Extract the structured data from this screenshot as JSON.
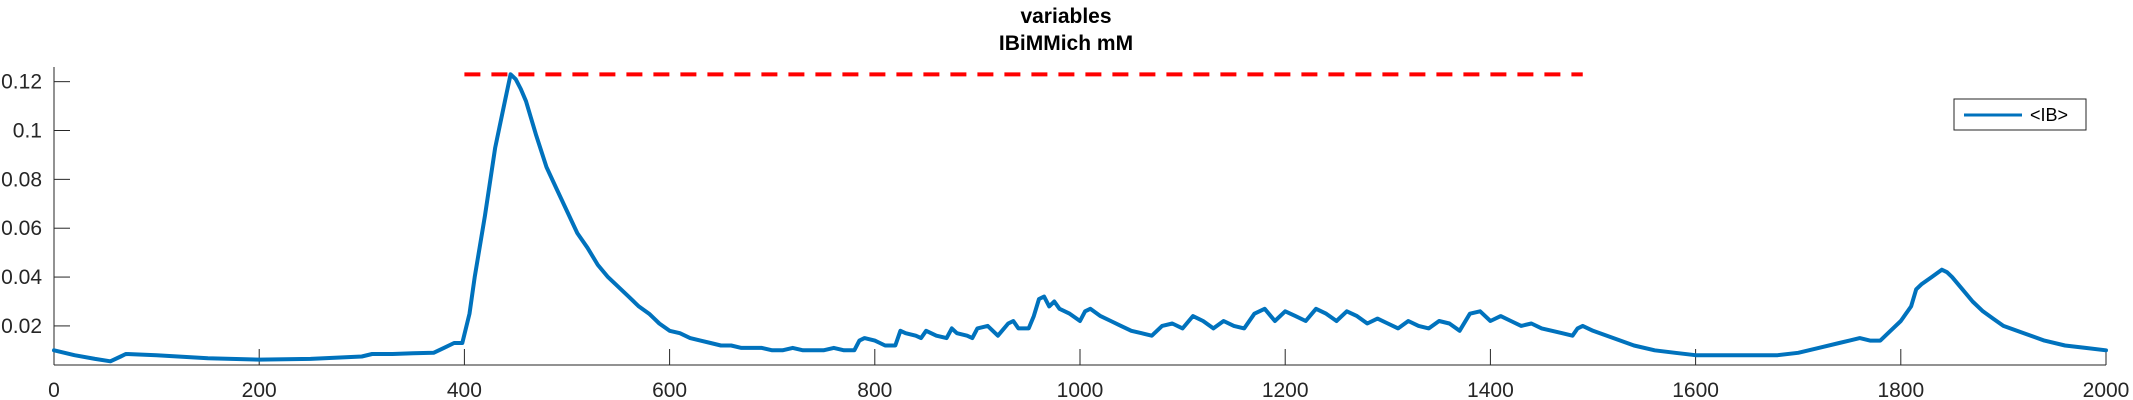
{
  "chart_data": {
    "type": "line",
    "title": [
      "variables",
      "IBiMMich mM"
    ],
    "xlabel": "",
    "ylabel": "",
    "xlim": [
      0,
      2000
    ],
    "ylim": [
      0.004,
      0.126
    ],
    "x_ticks": [
      0,
      200,
      400,
      600,
      800,
      1000,
      1200,
      1400,
      1600,
      1800,
      2000
    ],
    "y_ticks": [
      0.02,
      0.04,
      0.06,
      0.08,
      0.1,
      0.12
    ],
    "x_tick_labels": [
      "0",
      "200",
      "400",
      "600",
      "800",
      "1000",
      "1200",
      "1400",
      "1600",
      "1800",
      "2000"
    ],
    "y_tick_labels": [
      "0.02",
      "0.04",
      "0.06",
      "0.08",
      "0.1",
      "0.12"
    ],
    "grid": false,
    "legend_position": "top-right",
    "reference_line": {
      "y": 0.123,
      "x_start": 400,
      "x_end": 1490,
      "color": "#ff0000",
      "style": "dashed"
    },
    "series": [
      {
        "name": "<IB>",
        "color": "#0072bd",
        "x": [
          0,
          20,
          40,
          55,
          65,
          70,
          100,
          150,
          200,
          250,
          300,
          310,
          330,
          350,
          370,
          380,
          390,
          398,
          405,
          410,
          420,
          430,
          440,
          445,
          450,
          455,
          460,
          465,
          470,
          480,
          490,
          500,
          510,
          520,
          530,
          540,
          550,
          560,
          570,
          580,
          585,
          590,
          600,
          610,
          620,
          630,
          640,
          650,
          660,
          670,
          680,
          690,
          700,
          710,
          720,
          730,
          740,
          750,
          760,
          770,
          780,
          785,
          790,
          800,
          805,
          810,
          820,
          825,
          830,
          840,
          845,
          850,
          860,
          870,
          875,
          880,
          890,
          895,
          900,
          910,
          915,
          920,
          930,
          935,
          940,
          950,
          955,
          960,
          965,
          970,
          975,
          980,
          990,
          1000,
          1005,
          1010,
          1020,
          1030,
          1040,
          1050,
          1060,
          1070,
          1080,
          1090,
          1100,
          1110,
          1120,
          1130,
          1140,
          1150,
          1160,
          1170,
          1180,
          1190,
          1200,
          1210,
          1220,
          1230,
          1240,
          1250,
          1260,
          1270,
          1280,
          1290,
          1300,
          1310,
          1320,
          1330,
          1340,
          1350,
          1360,
          1370,
          1380,
          1390,
          1400,
          1410,
          1420,
          1430,
          1440,
          1450,
          1460,
          1470,
          1480,
          1485,
          1490,
          1500,
          1520,
          1540,
          1560,
          1580,
          1600,
          1620,
          1640,
          1660,
          1680,
          1700,
          1720,
          1740,
          1750,
          1760,
          1770,
          1780,
          1790,
          1800,
          1810,
          1815,
          1820,
          1830,
          1840,
          1845,
          1850,
          1860,
          1870,
          1880,
          1890,
          1900,
          1920,
          1940,
          1960,
          1980,
          2000
        ],
        "y": [
          0.01,
          0.008,
          0.0065,
          0.0055,
          0.0075,
          0.0085,
          0.008,
          0.0068,
          0.0062,
          0.0065,
          0.0075,
          0.0085,
          0.0085,
          0.0088,
          0.009,
          0.011,
          0.013,
          0.013,
          0.025,
          0.04,
          0.065,
          0.093,
          0.113,
          0.123,
          0.121,
          0.117,
          0.112,
          0.105,
          0.098,
          0.085,
          0.076,
          0.067,
          0.058,
          0.052,
          0.045,
          0.04,
          0.036,
          0.032,
          0.028,
          0.025,
          0.023,
          0.021,
          0.018,
          0.017,
          0.015,
          0.014,
          0.013,
          0.012,
          0.012,
          0.011,
          0.011,
          0.011,
          0.01,
          0.01,
          0.011,
          0.01,
          0.01,
          0.01,
          0.011,
          0.01,
          0.01,
          0.014,
          0.015,
          0.014,
          0.013,
          0.012,
          0.012,
          0.018,
          0.017,
          0.016,
          0.015,
          0.018,
          0.016,
          0.015,
          0.019,
          0.017,
          0.016,
          0.015,
          0.019,
          0.02,
          0.018,
          0.016,
          0.021,
          0.022,
          0.019,
          0.019,
          0.024,
          0.031,
          0.032,
          0.028,
          0.03,
          0.027,
          0.025,
          0.022,
          0.026,
          0.027,
          0.024,
          0.022,
          0.02,
          0.018,
          0.017,
          0.016,
          0.02,
          0.021,
          0.019,
          0.024,
          0.022,
          0.019,
          0.022,
          0.02,
          0.019,
          0.025,
          0.027,
          0.022,
          0.026,
          0.024,
          0.022,
          0.027,
          0.025,
          0.022,
          0.026,
          0.024,
          0.021,
          0.023,
          0.021,
          0.019,
          0.022,
          0.02,
          0.019,
          0.022,
          0.021,
          0.018,
          0.025,
          0.026,
          0.022,
          0.024,
          0.022,
          0.02,
          0.021,
          0.019,
          0.018,
          0.017,
          0.016,
          0.019,
          0.02,
          0.018,
          0.015,
          0.012,
          0.01,
          0.009,
          0.008,
          0.008,
          0.008,
          0.008,
          0.008,
          0.009,
          0.011,
          0.013,
          0.014,
          0.015,
          0.014,
          0.014,
          0.018,
          0.022,
          0.028,
          0.035,
          0.037,
          0.04,
          0.043,
          0.042,
          0.04,
          0.035,
          0.03,
          0.026,
          0.023,
          0.02,
          0.017,
          0.014,
          0.012,
          0.011,
          0.01
        ]
      }
    ]
  }
}
